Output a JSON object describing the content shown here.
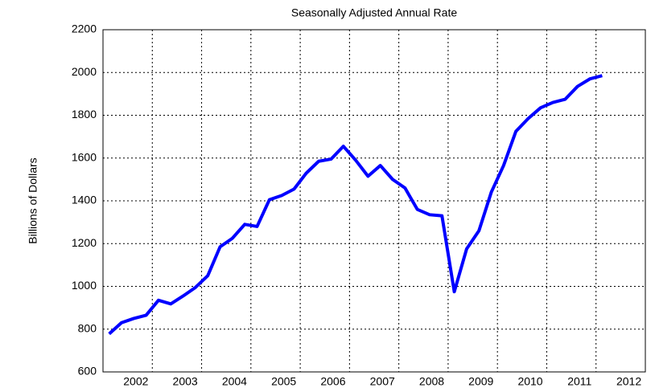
{
  "chart_data": {
    "type": "line",
    "title": "Seasonally Adjusted Annual Rate",
    "y_label": "Billions of Dollars",
    "x": [
      2001.125,
      2001.375,
      2001.625,
      2001.875,
      2002.125,
      2002.375,
      2002.625,
      2002.875,
      2003.125,
      2003.375,
      2003.625,
      2003.875,
      2004.125,
      2004.375,
      2004.625,
      2004.875,
      2005.125,
      2005.375,
      2005.625,
      2005.875,
      2006.125,
      2006.375,
      2006.625,
      2006.875,
      2007.125,
      2007.375,
      2007.625,
      2007.875,
      2008.125,
      2008.375,
      2008.625,
      2008.875,
      2009.125,
      2009.375,
      2009.625,
      2009.875,
      2010.125,
      2010.375,
      2010.625,
      2010.875,
      2011.125
    ],
    "series": [
      {
        "color": "#0000ff",
        "values": [
          778,
          830,
          850,
          865,
          935,
          918,
          955,
          995,
          1050,
          1185,
          1225,
          1290,
          1280,
          1405,
          1425,
          1455,
          1530,
          1585,
          1595,
          1655,
          1590,
          1515,
          1565,
          1500,
          1460,
          1360,
          1335,
          1330,
          975,
          1175,
          1260,
          1440,
          1565,
          1725,
          1785,
          1835,
          1860,
          1875,
          1935,
          1970,
          1985
        ]
      }
    ],
    "xlim": [
      2001,
      2012
    ],
    "xticks": [
      2002,
      2003,
      2004,
      2005,
      2006,
      2007,
      2008,
      2009,
      2010,
      2011,
      2012
    ],
    "ylim": [
      600,
      2200
    ],
    "yticks": [
      600,
      800,
      1000,
      1200,
      1400,
      1600,
      1800,
      2000,
      2200
    ],
    "grid": true
  }
}
